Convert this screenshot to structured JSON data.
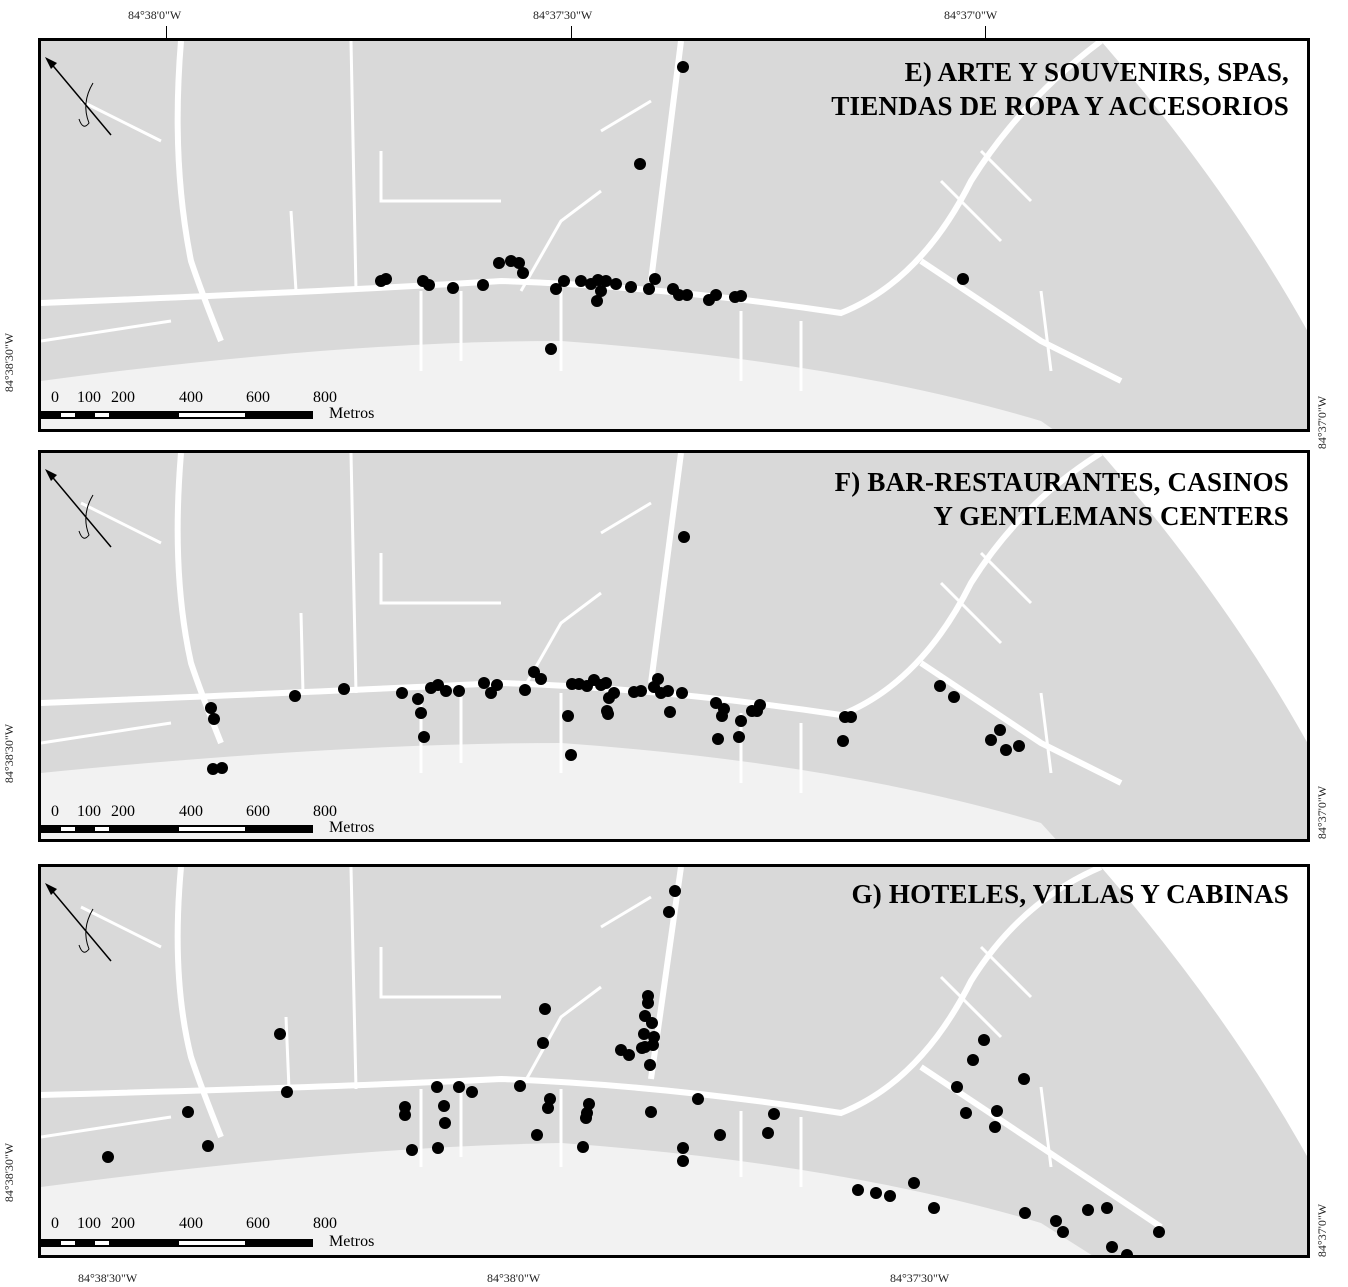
{
  "top_coords": [
    "84°38'0\"W",
    "84°37'30\"W",
    "84°37'0\"W"
  ],
  "bottom_coords": [
    "84°38'30\"W",
    "84°38'0\"W",
    "84°37'30\"W"
  ],
  "left_coord": "84°38'30\"W",
  "right_coord": "84°37'0\"W",
  "scale": {
    "labels": [
      "0",
      "100",
      "200",
      "400",
      "600",
      "800"
    ],
    "unit": "Metros"
  },
  "panels": [
    {
      "id": "E",
      "title_lines": [
        "E) ARTE Y SOUVENIRS, SPAS,",
        "TIENDAS DE ROPA Y ACCESORIOS"
      ]
    },
    {
      "id": "F",
      "title_lines": [
        "F) BAR-RESTAURANTES, CASINOS",
        "Y GENTLEMANS CENTERS"
      ]
    },
    {
      "id": "G",
      "title_lines": [
        "G) HOTELES, VILLAS Y CABINAS"
      ]
    }
  ],
  "colors": {
    "land": "#d9d9d9",
    "roads": "#ffffff",
    "points": "#000000",
    "beach": "#f0f0f0"
  }
}
